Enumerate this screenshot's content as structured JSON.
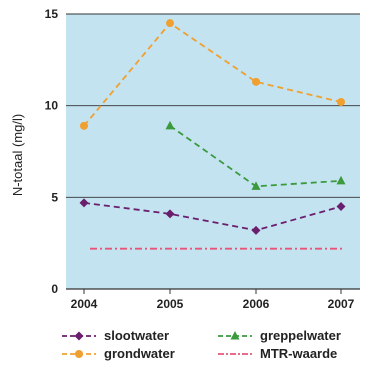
{
  "chart_data": {
    "type": "line",
    "ylabel": "N-totaal (mg/l)",
    "xlabel": "",
    "x": [
      "2004",
      "2005",
      "2006",
      "2007"
    ],
    "ylim": [
      0,
      15
    ],
    "yticks": [
      0,
      5,
      10,
      15
    ],
    "grid": "horizontal at y = 5, 10",
    "legend_position": "bottom",
    "background_color": "#c3e3f0",
    "series": [
      {
        "name": "slootwater",
        "values": [
          4.7,
          4.1,
          3.2,
          4.5
        ],
        "color": "#6a1f6e",
        "marker": "diamond"
      },
      {
        "name": "greppelwater",
        "values": [
          null,
          8.9,
          5.6,
          5.9
        ],
        "color": "#3a9a3c",
        "marker": "triangle"
      },
      {
        "name": "grondwater",
        "values": [
          8.9,
          14.5,
          11.3,
          10.2
        ],
        "color": "#f0a030",
        "marker": "circle"
      },
      {
        "name": "MTR-waarde",
        "values": [
          2.2,
          2.2,
          2.2,
          2.2
        ],
        "color": "#e8557a",
        "marker": "none"
      }
    ]
  }
}
